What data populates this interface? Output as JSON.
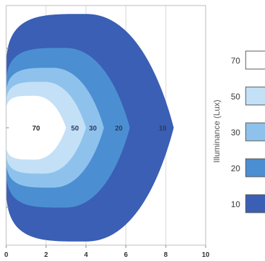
{
  "chart_data": {
    "type": "area",
    "x_ticks": [
      "0",
      "2",
      "4",
      "6",
      "8",
      "10"
    ],
    "xlim": [
      0,
      10
    ],
    "grid": "vertical",
    "legend": {
      "title": "Illuminance (Lux)",
      "placement": "right"
    },
    "contours": [
      {
        "lux": 10,
        "label": "10",
        "x_extent": [
          0,
          8.4
        ],
        "max_half_width": 5.7,
        "color": "#3a5fb5"
      },
      {
        "lux": 20,
        "label": "20",
        "x_extent": [
          0,
          6.2
        ],
        "max_half_width": 4.0,
        "color": "#4b8fd2"
      },
      {
        "lux": 30,
        "label": "30",
        "x_extent": [
          0,
          4.9
        ],
        "max_half_width": 3.0,
        "color": "#8ec2ec"
      },
      {
        "lux": 50,
        "label": "50",
        "x_extent": [
          0,
          4.0
        ],
        "max_half_width": 2.3,
        "color": "#c3e0f7"
      },
      {
        "lux": 70,
        "label": "70",
        "x_extent": [
          0,
          3.0
        ],
        "max_half_width": 1.6,
        "color": "#ffffff"
      }
    ],
    "legend_items": [
      {
        "label": "70",
        "color": "#ffffff"
      },
      {
        "label": "50",
        "color": "#c3e0f7"
      },
      {
        "label": "30",
        "color": "#8ec2ec"
      },
      {
        "label": "20",
        "color": "#4b8fd2"
      },
      {
        "label": "10",
        "color": "#3a5fb5"
      }
    ]
  }
}
